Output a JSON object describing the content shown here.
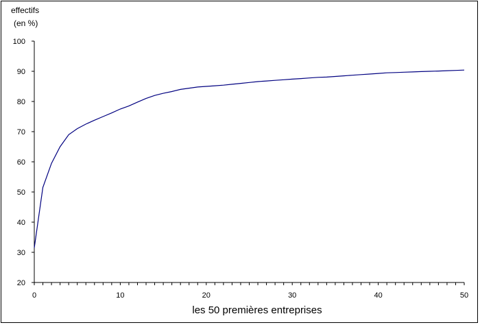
{
  "chart_data": {
    "type": "line",
    "title": "",
    "ylabel_line1": "effectifs",
    "ylabel_line2": "(en %)",
    "xlabel": "les 50 premières entreprises",
    "xlim": [
      0,
      50
    ],
    "ylim": [
      20,
      100
    ],
    "x_ticks": [
      0,
      10,
      20,
      30,
      40,
      50
    ],
    "y_ticks": [
      20,
      30,
      40,
      50,
      60,
      70,
      80,
      90,
      100
    ],
    "grid": false,
    "line_color": "#000080",
    "series": [
      {
        "x": [
          0,
          1,
          2,
          3,
          4,
          5,
          6,
          7,
          8,
          9,
          10,
          11,
          12,
          13,
          14,
          15,
          16,
          17,
          18,
          19,
          20,
          21,
          22,
          23,
          24,
          25,
          26,
          27,
          28,
          29,
          30,
          31,
          32,
          33,
          34,
          35,
          36,
          37,
          38,
          39,
          40,
          41,
          42,
          43,
          44,
          45,
          46,
          47,
          48,
          49,
          50
        ],
        "values": [
          31.5,
          51.5,
          59.5,
          65,
          69,
          71,
          72.5,
          73.8,
          75,
          76.2,
          77.5,
          78.5,
          79.8,
          81,
          82,
          82.7,
          83.3,
          84,
          84.4,
          84.8,
          85,
          85.2,
          85.4,
          85.7,
          86,
          86.3,
          86.6,
          86.8,
          87,
          87.2,
          87.4,
          87.6,
          87.8,
          88,
          88.1,
          88.3,
          88.5,
          88.7,
          88.9,
          89.1,
          89.3,
          89.5,
          89.6,
          89.7,
          89.8,
          89.9,
          90,
          90.1,
          90.2,
          90.3,
          90.4
        ]
      }
    ]
  }
}
